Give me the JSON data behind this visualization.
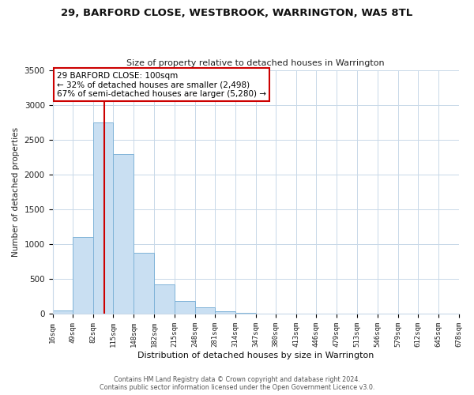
{
  "title": "29, BARFORD CLOSE, WESTBROOK, WARRINGTON, WA5 8TL",
  "subtitle": "Size of property relative to detached houses in Warrington",
  "xlabel": "Distribution of detached houses by size in Warrington",
  "ylabel": "Number of detached properties",
  "bar_color": "#c9dff2",
  "bar_edge_color": "#7fb3d8",
  "annotation_line1": "29 BARFORD CLOSE: 100sqm",
  "annotation_line2": "← 32% of detached houses are smaller (2,498)",
  "annotation_line3": "67% of semi-detached houses are larger (5,280) →",
  "annotation_box_color": "#ffffff",
  "annotation_box_edge_color": "#cc0000",
  "vline_x": 100,
  "vline_color": "#cc0000",
  "footer_line1": "Contains HM Land Registry data © Crown copyright and database right 2024.",
  "footer_line2": "Contains public sector information licensed under the Open Government Licence v3.0.",
  "bins": [
    16,
    49,
    82,
    115,
    148,
    182,
    215,
    248,
    281,
    314,
    347,
    380,
    413,
    446,
    479,
    513,
    546,
    579,
    612,
    645,
    678
  ],
  "counts": [
    50,
    1110,
    2750,
    2300,
    880,
    430,
    190,
    100,
    40,
    20,
    5,
    0,
    0,
    0,
    0,
    0,
    0,
    0,
    0,
    0
  ],
  "ylim": [
    0,
    3500
  ],
  "yticks": [
    0,
    500,
    1000,
    1500,
    2000,
    2500,
    3000,
    3500
  ],
  "background_color": "#ffffff",
  "plot_bg_color": "#ffffff",
  "grid_color": "#c8d8e8"
}
